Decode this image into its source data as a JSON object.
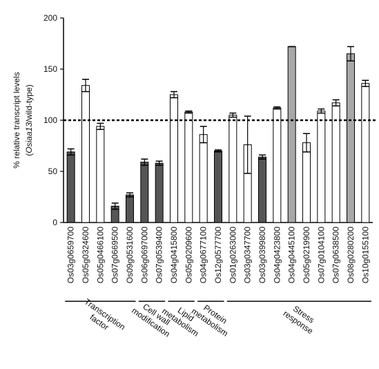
{
  "chart_data": {
    "type": "bar",
    "ylabel": {
      "line1": "% relative transcript levels",
      "line2_pre": "(",
      "line2_italic": "Osiaa13",
      "line2_post": "/wild-type)"
    },
    "categories": [
      "Os03g0659700",
      "Os05g0324600",
      "Os05g0466100",
      "Os07g0669500",
      "Os09g0531600",
      "Os06g0697000",
      "Os07g0539400",
      "Os04g0415800",
      "Os05g0209600",
      "Os04g0677100",
      "Os12g0577700",
      "Os01g0263000",
      "Os03g0347700",
      "Os03g0399800",
      "Os04g0423800",
      "Os04g0445100",
      "Os05g0219900",
      "Os07g0104100",
      "Os07g0638500",
      "Os08g0280200",
      "Os10g0155100"
    ],
    "values": [
      69,
      134,
      94,
      16,
      27,
      59,
      58,
      125,
      108,
      86,
      70,
      105,
      76,
      64,
      112,
      172,
      78,
      109,
      117,
      165,
      136
    ],
    "errors": [
      3,
      6,
      3,
      3,
      2,
      3,
      2,
      3,
      1,
      8,
      1,
      2,
      28,
      2,
      1,
      0,
      9,
      2,
      3,
      7,
      3
    ],
    "colors": [
      "#555555",
      "#ffffff",
      "#ffffff",
      "#555555",
      "#555555",
      "#555555",
      "#555555",
      "#ffffff",
      "#ffffff",
      "#ffffff",
      "#555555",
      "#ffffff",
      "#ffffff",
      "#555555",
      "#ffffff",
      "#a8a8a8",
      "#ffffff",
      "#ffffff",
      "#ffffff",
      "#a8a8a8",
      "#ffffff"
    ],
    "reference_line": 100,
    "groups": [
      {
        "lines": [
          "Transcription",
          "factor"
        ],
        "start": 0,
        "end": 4
      },
      {
        "lines": [
          "Cell wall",
          "modification"
        ],
        "start": 5,
        "end": 6
      },
      {
        "lines": [
          "Lipid",
          "metabolism"
        ],
        "start": 7,
        "end": 8
      },
      {
        "lines": [
          "Protein",
          "metabolism"
        ],
        "start": 9,
        "end": 10
      },
      {
        "lines": [
          "Stress",
          "response"
        ],
        "start": 11,
        "end": 20
      }
    ],
    "ylim": [
      0,
      200
    ],
    "yticks": [
      0,
      50,
      100,
      150,
      200
    ]
  }
}
